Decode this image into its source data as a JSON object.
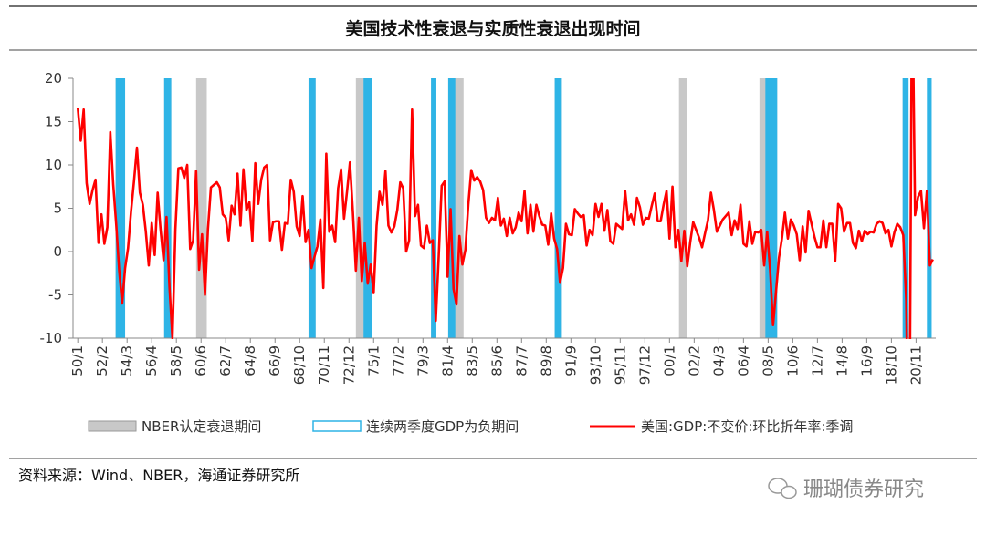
{
  "chart_data": {
    "type": "line",
    "title": "美国技术性衰退与实质性衰退出现时间",
    "source": "资料来源：Wind、NBER，海通证券研究所",
    "watermark": "珊瑚债券研究",
    "xlim": [
      1949.6,
      2022.5
    ],
    "ylim": [
      -10,
      20
    ],
    "yticks": [
      -10,
      -5,
      0,
      5,
      10,
      15,
      20
    ],
    "xticks": [
      {
        "value": 1950,
        "label": "50/1"
      },
      {
        "value": 1952.083,
        "label": "52/2"
      },
      {
        "value": 1954.167,
        "label": "54/3"
      },
      {
        "value": 1956.25,
        "label": "56/4"
      },
      {
        "value": 1958.333,
        "label": "58/5"
      },
      {
        "value": 1960.417,
        "label": "60/6"
      },
      {
        "value": 1962.5,
        "label": "62/7"
      },
      {
        "value": 1964.583,
        "label": "64/8"
      },
      {
        "value": 1966.667,
        "label": "66/9"
      },
      {
        "value": 1968.75,
        "label": "68/10"
      },
      {
        "value": 1970.833,
        "label": "70/11"
      },
      {
        "value": 1972.917,
        "label": "72/12"
      },
      {
        "value": 1975,
        "label": "75/1"
      },
      {
        "value": 1977.083,
        "label": "77/2"
      },
      {
        "value": 1979.167,
        "label": "79/3"
      },
      {
        "value": 1981.25,
        "label": "81/4"
      },
      {
        "value": 1983.333,
        "label": "83/5"
      },
      {
        "value": 1985.417,
        "label": "85/6"
      },
      {
        "value": 1987.5,
        "label": "87/7"
      },
      {
        "value": 1989.583,
        "label": "89/8"
      },
      {
        "value": 1991.667,
        "label": "91/9"
      },
      {
        "value": 1993.75,
        "label": "93/10"
      },
      {
        "value": 1995.833,
        "label": "95/11"
      },
      {
        "value": 1997.917,
        "label": "97/12"
      },
      {
        "value": 2000,
        "label": "00/1"
      },
      {
        "value": 2002.083,
        "label": "02/2"
      },
      {
        "value": 2004.167,
        "label": "04/3"
      },
      {
        "value": 2006.25,
        "label": "06/4"
      },
      {
        "value": 2008.333,
        "label": "08/5"
      },
      {
        "value": 2010.417,
        "label": "10/6"
      },
      {
        "value": 2012.5,
        "label": "12/7"
      },
      {
        "value": 2014.583,
        "label": "14/8"
      },
      {
        "value": 2016.667,
        "label": "16/9"
      },
      {
        "value": 2018.75,
        "label": "18/10"
      },
      {
        "value": 2020.833,
        "label": "20/11"
      }
    ],
    "shaded_regions": [
      {
        "name": "NBER认定衰退期间",
        "color": "#c8c8c8",
        "ranges": [
          [
            1953.2,
            1954.0
          ],
          [
            1957.3,
            1957.9
          ],
          [
            1960.0,
            1960.9
          ],
          [
            1969.5,
            1970.1
          ],
          [
            1973.5,
            1974.9
          ],
          [
            1979.85,
            1980.3
          ],
          [
            1981.3,
            1982.6
          ],
          [
            1990.3,
            1990.9
          ],
          [
            2000.8,
            2001.5
          ],
          [
            2007.6,
            2009.1
          ],
          [
            2019.7,
            2020.0
          ]
        ]
      },
      {
        "name": "连续两季度GDP为负期间",
        "color": "#2eb4e6",
        "ranges": [
          [
            1953.2,
            1954.0
          ],
          [
            1957.3,
            1957.9
          ],
          [
            1969.5,
            1970.1
          ],
          [
            1974.15,
            1974.9
          ],
          [
            1979.85,
            1980.3
          ],
          [
            1981.3,
            1981.9
          ],
          [
            1990.3,
            1990.9
          ],
          [
            2008.1,
            2009.1
          ],
          [
            2019.7,
            2020.2
          ],
          [
            2021.75,
            2022.15
          ]
        ]
      }
    ],
    "x": [
      1950,
      1950.25,
      1950.5,
      1950.75,
      1951,
      1951.25,
      1951.5,
      1951.75,
      1952,
      1952.25,
      1952.5,
      1952.75,
      1953,
      1953.25,
      1953.5,
      1953.75,
      1954,
      1954.25,
      1954.5,
      1954.75,
      1955,
      1955.25,
      1955.5,
      1955.75,
      1956,
      1956.25,
      1956.5,
      1956.75,
      1957,
      1957.25,
      1957.5,
      1957.75,
      1958,
      1958.25,
      1958.5,
      1958.75,
      1959,
      1959.25,
      1959.5,
      1959.75,
      1960,
      1960.25,
      1960.5,
      1960.75,
      1961,
      1961.25,
      1961.5,
      1961.75,
      1962,
      1962.25,
      1962.5,
      1962.75,
      1963,
      1963.25,
      1963.5,
      1963.75,
      1964,
      1964.25,
      1964.5,
      1964.75,
      1965,
      1965.25,
      1965.5,
      1965.75,
      1966,
      1966.25,
      1966.5,
      1966.75,
      1967,
      1967.25,
      1967.5,
      1967.75,
      1968,
      1968.25,
      1968.5,
      1968.75,
      1969,
      1969.25,
      1969.5,
      1969.75,
      1970,
      1970.25,
      1970.5,
      1970.75,
      1971,
      1971.25,
      1971.5,
      1971.75,
      1972,
      1972.25,
      1972.5,
      1972.75,
      1973,
      1973.25,
      1973.5,
      1973.75,
      1974,
      1974.25,
      1974.5,
      1974.75,
      1975,
      1975.25,
      1975.5,
      1975.75,
      1976,
      1976.25,
      1976.5,
      1976.75,
      1977,
      1977.25,
      1977.5,
      1977.75,
      1978,
      1978.25,
      1978.5,
      1978.75,
      1979,
      1979.25,
      1979.5,
      1979.75,
      1980,
      1980.25,
      1980.5,
      1980.75,
      1981,
      1981.25,
      1981.5,
      1981.75,
      1982,
      1982.25,
      1982.5,
      1982.75,
      1983,
      1983.25,
      1983.5,
      1983.75,
      1984,
      1984.25,
      1984.5,
      1984.75,
      1985,
      1985.25,
      1985.5,
      1985.75,
      1986,
      1986.25,
      1986.5,
      1986.75,
      1987,
      1987.25,
      1987.5,
      1987.75,
      1988,
      1988.25,
      1988.5,
      1988.75,
      1989,
      1989.25,
      1989.5,
      1989.75,
      1990,
      1990.25,
      1990.5,
      1990.75,
      1991,
      1991.25,
      1991.5,
      1991.75,
      1992,
      1992.25,
      1992.5,
      1992.75,
      1993,
      1993.25,
      1993.5,
      1993.75,
      1994,
      1994.25,
      1994.5,
      1994.75,
      1995,
      1995.25,
      1995.5,
      1995.75,
      1996,
      1996.25,
      1996.5,
      1996.75,
      1997,
      1997.25,
      1997.5,
      1997.75,
      1998,
      1998.25,
      1998.5,
      1998.75,
      1999,
      1999.25,
      1999.5,
      1999.75,
      2000,
      2000.25,
      2000.5,
      2000.75,
      2001,
      2001.25,
      2001.5,
      2001.75,
      2002,
      2002.25,
      2002.5,
      2002.75,
      2003,
      2003.25,
      2003.5,
      2003.75,
      2004,
      2004.25,
      2004.5,
      2004.75,
      2005,
      2005.25,
      2005.5,
      2005.75,
      2006,
      2006.25,
      2006.5,
      2006.75,
      2007,
      2007.25,
      2007.5,
      2007.75,
      2008,
      2008.25,
      2008.5,
      2008.75,
      2009,
      2009.25,
      2009.5,
      2009.75,
      2010,
      2010.25,
      2010.5,
      2010.75,
      2011,
      2011.25,
      2011.5,
      2011.75,
      2012,
      2012.25,
      2012.5,
      2012.75,
      2013,
      2013.25,
      2013.5,
      2013.75,
      2014,
      2014.25,
      2014.5,
      2014.75,
      2015,
      2015.25,
      2015.5,
      2015.75,
      2016,
      2016.25,
      2016.5,
      2016.75,
      2017,
      2017.25,
      2017.5,
      2017.75,
      2018,
      2018.25,
      2018.5,
      2018.75,
      2019,
      2019.25,
      2019.5,
      2019.75,
      2020,
      2020.25,
      2020.5,
      2020.75,
      2021,
      2021.25,
      2021.5,
      2021.75,
      2022,
      2022.25
    ],
    "series": [
      {
        "name": "美国:GDP:不变价:环比折年率:季调",
        "color": "#ff0000",
        "values": [
          16.6,
          12.8,
          16.4,
          7.9,
          5.5,
          7.1,
          8.3,
          1.0,
          4.3,
          0.9,
          2.8,
          13.8,
          7.7,
          3.1,
          -2.2,
          -6.0,
          -1.9,
          0.4,
          4.6,
          8.1,
          12.0,
          6.8,
          5.4,
          2.3,
          -1.6,
          3.3,
          -0.4,
          6.8,
          2.5,
          -1.0,
          4.0,
          -4.1,
          -10.0,
          2.6,
          9.6,
          9.7,
          8.5,
          10.0,
          0.3,
          1.3,
          9.3,
          -2.1,
          2.0,
          -5.0,
          2.6,
          7.4,
          7.7,
          8.0,
          7.4,
          4.3,
          3.9,
          1.3,
          5.3,
          4.3,
          9.0,
          3.0,
          9.5,
          4.8,
          5.7,
          1.2,
          10.2,
          5.5,
          8.3,
          9.7,
          10.0,
          1.3,
          3.4,
          3.5,
          3.5,
          0.2,
          3.3,
          3.2,
          8.3,
          6.9,
          2.9,
          1.8,
          6.4,
          1.1,
          2.5,
          -1.9,
          -0.6,
          0.6,
          3.7,
          -4.2,
          11.3,
          2.3,
          3.0,
          1.1,
          7.3,
          9.5,
          3.8,
          6.9,
          10.3,
          4.5,
          -2.2,
          3.9,
          -3.4,
          1.0,
          -3.7,
          -1.5,
          -4.8,
          3.0,
          6.9,
          5.4,
          9.3,
          3.0,
          2.2,
          2.9,
          4.8,
          8.0,
          7.3,
          0.0,
          1.3,
          16.4,
          4.1,
          5.4,
          0.7,
          0.4,
          3.0,
          1.0,
          1.3,
          -8.0,
          -0.5,
          7.6,
          8.1,
          -2.9,
          4.9,
          -4.3,
          -6.1,
          1.8,
          -1.5,
          0.2,
          5.4,
          9.4,
          8.2,
          8.6,
          8.1,
          7.1,
          3.9,
          3.3,
          3.9,
          3.6,
          6.2,
          3.0,
          3.8,
          1.8,
          3.9,
          2.1,
          2.8,
          4.5,
          3.5,
          7.0,
          2.1,
          5.4,
          2.3,
          5.4,
          4.1,
          3.1,
          3.0,
          0.8,
          4.4,
          1.5,
          0.3,
          -3.6,
          -1.9,
          3.2,
          2.0,
          1.9,
          4.9,
          4.4,
          4.0,
          4.2,
          0.7,
          2.5,
          1.9,
          5.5,
          4.0,
          5.5,
          2.4,
          4.8,
          1.2,
          0.9,
          3.2,
          2.9,
          2.6,
          7.0,
          3.6,
          4.3,
          3.1,
          6.2,
          5.1,
          3.1,
          3.9,
          3.8,
          5.3,
          6.7,
          3.5,
          3.5,
          5.4,
          7.0,
          1.5,
          7.5,
          0.5,
          2.5,
          -1.1,
          2.4,
          -1.7,
          1.1,
          3.4,
          2.5,
          1.6,
          0.5,
          2.1,
          3.6,
          6.8,
          4.8,
          2.3,
          3.0,
          3.7,
          4.1,
          4.5,
          1.9,
          3.6,
          2.6,
          5.4,
          0.9,
          0.6,
          3.5,
          0.9,
          2.3,
          2.2,
          2.5,
          -1.6,
          2.3,
          -2.1,
          -8.5,
          -4.6,
          -0.7,
          1.5,
          4.5,
          1.5,
          3.7,
          3.0,
          2.0,
          -1.0,
          2.9,
          -0.1,
          4.7,
          3.2,
          1.7,
          0.5,
          0.5,
          3.6,
          0.5,
          3.2,
          3.2,
          -1.1,
          5.5,
          5.0,
          2.3,
          3.3,
          3.3,
          1.0,
          0.4,
          2.4,
          1.2,
          2.4,
          2.0,
          2.3,
          2.2,
          3.2,
          3.5,
          3.3,
          2.1,
          2.5,
          0.6,
          2.2,
          3.2,
          2.8,
          1.9,
          -5.5,
          -31.2,
          33.8,
          4.2,
          6.3,
          7.0,
          2.7,
          7.0,
          -1.6,
          -0.9
        ]
      }
    ]
  }
}
